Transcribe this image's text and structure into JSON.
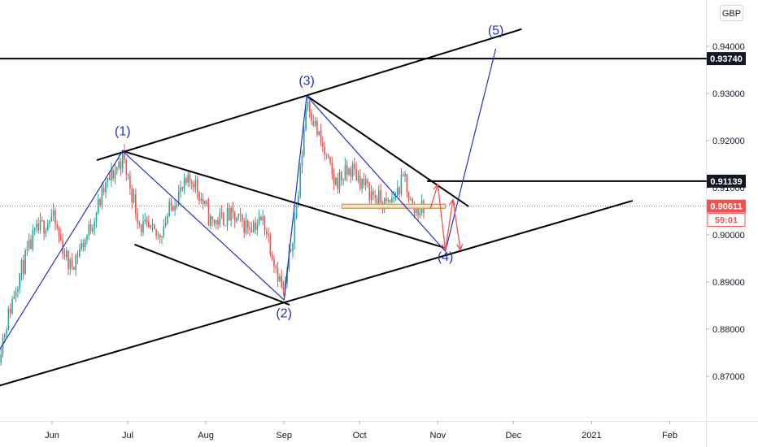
{
  "currency_button": "GBP",
  "colors": {
    "up": "#26a69a",
    "down": "#ef5350",
    "wave": "#2330c8",
    "forecast": "#ef5350",
    "trendline": "#000000",
    "zone_fill": "#fbe3c4",
    "zone_stroke": "#c8a46e",
    "last_price_line": "#ef5350",
    "axis_text": "#131722"
  },
  "price_labels": [
    {
      "value": 0.9374,
      "text": "0.93740",
      "style": "dark"
    },
    {
      "value": 0.91139,
      "text": "0.91139",
      "style": "dark"
    },
    {
      "value": 0.90611,
      "text": "0.90611",
      "style": "red"
    },
    {
      "text": "59:01",
      "style": "red-sub"
    }
  ],
  "wave_labels": [
    {
      "text": "(1)",
      "date": "2020-06-29",
      "price": 0.9211
    },
    {
      "text": "(2)",
      "date": "2020-09-01",
      "price": 0.8825
    },
    {
      "text": "(3)",
      "date": "2020-09-10",
      "price": 0.9318
    },
    {
      "text": "(4)",
      "date": "2020-11-04",
      "price": 0.8945
    },
    {
      "text": "(5)",
      "date": "2020-11-24",
      "price": 0.9425
    }
  ],
  "chart_data": {
    "type": "candlestick",
    "y_ticks": [
      0.94,
      0.93,
      0.92,
      0.91,
      0.9,
      0.89,
      0.88,
      0.87
    ],
    "y_tick_labels": [
      "0.94000",
      "0.93000",
      "0.92000",
      "0.91000",
      "0.90000",
      "0.89000",
      "0.88000",
      "0.87000"
    ],
    "x_ticks": [
      {
        "label": "Jun",
        "date": "2020-06-01"
      },
      {
        "label": "Jul",
        "date": "2020-07-01"
      },
      {
        "label": "Aug",
        "date": "2020-08-01"
      },
      {
        "label": "Sep",
        "date": "2020-09-01"
      },
      {
        "label": "Oct",
        "date": "2020-10-01"
      },
      {
        "label": "Nov",
        "date": "2020-11-01"
      },
      {
        "label": "Dec",
        "date": "2020-12-01"
      },
      {
        "label": "2021",
        "date": "2021-01-01"
      },
      {
        "label": "Feb",
        "date": "2021-02-01"
      }
    ],
    "price_path": [
      {
        "date": "2020-05-11",
        "price": 0.875
      },
      {
        "date": "2020-05-18",
        "price": 0.89
      },
      {
        "date": "2020-05-25",
        "price": 0.9
      },
      {
        "date": "2020-06-01",
        "price": 0.904
      },
      {
        "date": "2020-06-08",
        "price": 0.893
      },
      {
        "date": "2020-06-15",
        "price": 0.9
      },
      {
        "date": "2020-06-22",
        "price": 0.91
      },
      {
        "date": "2020-06-29",
        "price": 0.9165
      },
      {
        "date": "2020-07-06",
        "price": 0.902
      },
      {
        "date": "2020-07-13",
        "price": 0.8995
      },
      {
        "date": "2020-07-20",
        "price": 0.908
      },
      {
        "date": "2020-07-27",
        "price": 0.912
      },
      {
        "date": "2020-08-03",
        "price": 0.9025
      },
      {
        "date": "2020-08-10",
        "price": 0.904
      },
      {
        "date": "2020-08-17",
        "price": 0.902
      },
      {
        "date": "2020-08-24",
        "price": 0.903
      },
      {
        "date": "2020-09-01",
        "price": 0.887
      },
      {
        "date": "2020-09-07",
        "price": 0.91
      },
      {
        "date": "2020-09-10",
        "price": 0.9295
      },
      {
        "date": "2020-09-14",
        "price": 0.922
      },
      {
        "date": "2020-09-21",
        "price": 0.911
      },
      {
        "date": "2020-09-28",
        "price": 0.914
      },
      {
        "date": "2020-10-05",
        "price": 0.909
      },
      {
        "date": "2020-10-12",
        "price": 0.906
      },
      {
        "date": "2020-10-19",
        "price": 0.912
      },
      {
        "date": "2020-10-22",
        "price": 0.905
      },
      {
        "date": "2020-10-27",
        "price": 0.9061
      }
    ],
    "wave_path": [
      {
        "date": "2020-05-11",
        "price": 0.8755
      },
      {
        "date": "2020-06-29",
        "price": 0.9178
      },
      {
        "date": "2020-09-01",
        "price": 0.8862
      },
      {
        "date": "2020-09-10",
        "price": 0.9295
      },
      {
        "date": "2020-11-04",
        "price": 0.8965
      },
      {
        "date": "2020-11-24",
        "price": 0.9395
      }
    ],
    "projection_arrows": [
      {
        "from": {
          "date": "2020-10-29",
          "price": 0.9055
        },
        "to": {
          "date": "2020-11-01",
          "price": 0.9107
        }
      },
      {
        "from": {
          "date": "2020-11-01",
          "price": 0.9107
        },
        "to": {
          "date": "2020-11-04",
          "price": 0.8968
        }
      },
      {
        "from": {
          "date": "2020-11-04",
          "price": 0.8968
        },
        "to": {
          "date": "2020-11-07",
          "price": 0.9075
        }
      },
      {
        "from": {
          "date": "2020-11-07",
          "price": 0.9075
        },
        "to": {
          "date": "2020-11-10",
          "price": 0.8968
        }
      }
    ],
    "trendlines": [
      {
        "name": "upper-channel",
        "from": {
          "date": "2020-06-19",
          "price": 0.9159
        },
        "to": {
          "date": "2020-12-04",
          "price": 0.9436
        }
      },
      {
        "name": "lower-channel",
        "from": {
          "date": "2020-05-11",
          "price": 0.868
        },
        "to": {
          "date": "2021-01-17",
          "price": 0.9072
        }
      },
      {
        "name": "wave2-upper",
        "from": {
          "date": "2020-06-29",
          "price": 0.9178
        },
        "to": {
          "date": "2020-11-04",
          "price": 0.8972
        }
      },
      {
        "name": "wave2-lower",
        "from": {
          "date": "2020-07-04",
          "price": 0.8979
        },
        "to": {
          "date": "2020-09-03",
          "price": 0.8852
        }
      },
      {
        "name": "wave4-upper",
        "from": {
          "date": "2020-09-10",
          "price": 0.9295
        },
        "to": {
          "date": "2020-11-13",
          "price": 0.9061
        }
      },
      {
        "name": "resistance-1",
        "from": {
          "date": "2020-10-28",
          "price": 0.91139
        },
        "to": {
          "date": "2021-03-01",
          "price": 0.91139
        }
      },
      {
        "name": "resistance-2",
        "from": {
          "date": "2020-05-11",
          "price": 0.9374
        },
        "to": {
          "date": "2021-03-01",
          "price": 0.9374
        }
      }
    ],
    "zone": {
      "from_date": "2020-09-24",
      "to_date": "2020-11-04",
      "price_high": 0.9065,
      "price_low": 0.9059
    },
    "last_price": 0.90611,
    "candle_seed": 11
  }
}
